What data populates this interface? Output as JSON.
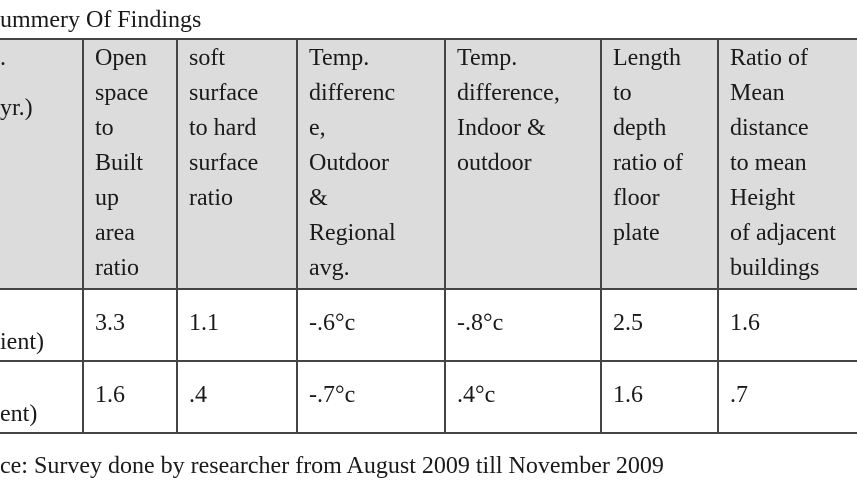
{
  "title": "ummery Of Findings",
  "table": {
    "header": [
      [
        ".",
        "yr.)"
      ],
      [
        "Open",
        "space",
        "to",
        "Built",
        "up",
        "area",
        "ratio"
      ],
      [
        "soft",
        "surface",
        "to hard",
        "surface",
        "ratio"
      ],
      [
        "Temp.",
        "differenc",
        "e,",
        "Outdoor",
        "&",
        "Regional",
        "avg."
      ],
      [
        "Temp.",
        "difference,",
        "Indoor &",
        "outdoor"
      ],
      [
        "Length",
        "to",
        "depth",
        "ratio of",
        "floor",
        "plate"
      ],
      [
        "Ratio of",
        "Mean",
        "distance",
        "to mean",
        "Height",
        "of adjacent",
        "buildings"
      ]
    ],
    "rows": [
      [
        "ient)",
        "3.3",
        "1.1",
        "-.6°c",
        "-.8°c",
        "2.5",
        "1.6"
      ],
      [
        "ent)",
        "1.6",
        ".4",
        "-.7°c",
        ".4°c",
        "1.6",
        ".7"
      ]
    ]
  },
  "source": "ce: Survey done by researcher from August 2009 till November 2009"
}
